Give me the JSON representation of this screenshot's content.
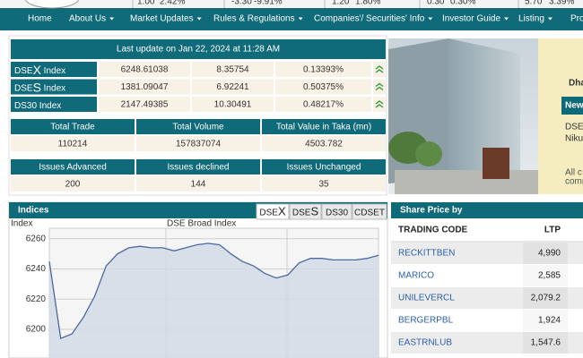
{
  "ticker": [
    "1.00",
    "2.42%",
    "-3.30",
    "-9.91%",
    "1.20",
    "1.80%",
    "0.30",
    "0.30%",
    "5.70",
    "3.39%"
  ],
  "nav": {
    "items": [
      "Home",
      "About Us",
      "Market Updates",
      "Rules & Regulations",
      "Companies'/ Securities' Info",
      "Investor Guide",
      "Listing",
      "Pro"
    ]
  },
  "market_summary": {
    "title": "Last update on Jan 22, 2024 at 11:28 AM",
    "indices": [
      {
        "name": [
          "DSE",
          "X",
          " Index"
        ],
        "value": "6248.61038",
        "change": "8.35754",
        "percent": "0.13393%"
      },
      {
        "name": [
          "DSE",
          "S",
          " Index"
        ],
        "value": "1381.09047",
        "change": "6.92241",
        "percent": "0.50375%"
      },
      {
        "name": [
          "DS30 Index"
        ],
        "value": "2147.49385",
        "change": "10.30491",
        "percent": "0.48217%"
      }
    ],
    "trade": {
      "headers": [
        "Total Trade",
        "Total Volume",
        "Total Value in Taka (mn)"
      ],
      "values": [
        "110214",
        "157837074",
        "4503.782"
      ]
    },
    "issues": {
      "headers": [
        "Issues Advanced",
        "Issues declined",
        "Issues Unchanged"
      ],
      "values": [
        "200",
        "144",
        "35"
      ]
    }
  },
  "banner": {
    "texts": [
      "Dha",
      "New",
      "DSE",
      "Niku",
      "All c",
      "comm"
    ]
  },
  "indices_panel": {
    "title": "Indices",
    "tabs": [
      [
        "DSE",
        "X"
      ],
      [
        "DSE",
        "S"
      ],
      [
        "DS30"
      ],
      [
        "CDSET"
      ]
    ]
  },
  "chart_data": {
    "type": "line",
    "title": "DSE Broad Index",
    "y_label": "Index",
    "color": "#4a68a0",
    "values": [
      6245,
      6194,
      6197,
      6208,
      6222,
      6242,
      6250,
      6254,
      6255,
      6254,
      6254,
      6252,
      6254,
      6256,
      6257,
      6256,
      6250,
      6245,
      6242,
      6237,
      6234,
      6236,
      6244,
      6247,
      6247,
      6246,
      6246,
      6246,
      6247,
      6249
    ],
    "ylim": [
      6181,
      6267
    ],
    "yticks": [
      6200,
      6220,
      6240,
      6260
    ],
    "grid": true
  },
  "share_price": {
    "title": "Share Price by",
    "headers": [
      "TRADING CODE",
      "LTP"
    ],
    "rows": [
      [
        "RECKITTBEN",
        "4,990"
      ],
      [
        "MARICO",
        "2,585"
      ],
      [
        "UNILEVERCL",
        "2,079.2"
      ],
      [
        "BERGERPBL",
        "1,924"
      ],
      [
        "EASTRNLUB",
        "1,547.6"
      ]
    ]
  }
}
